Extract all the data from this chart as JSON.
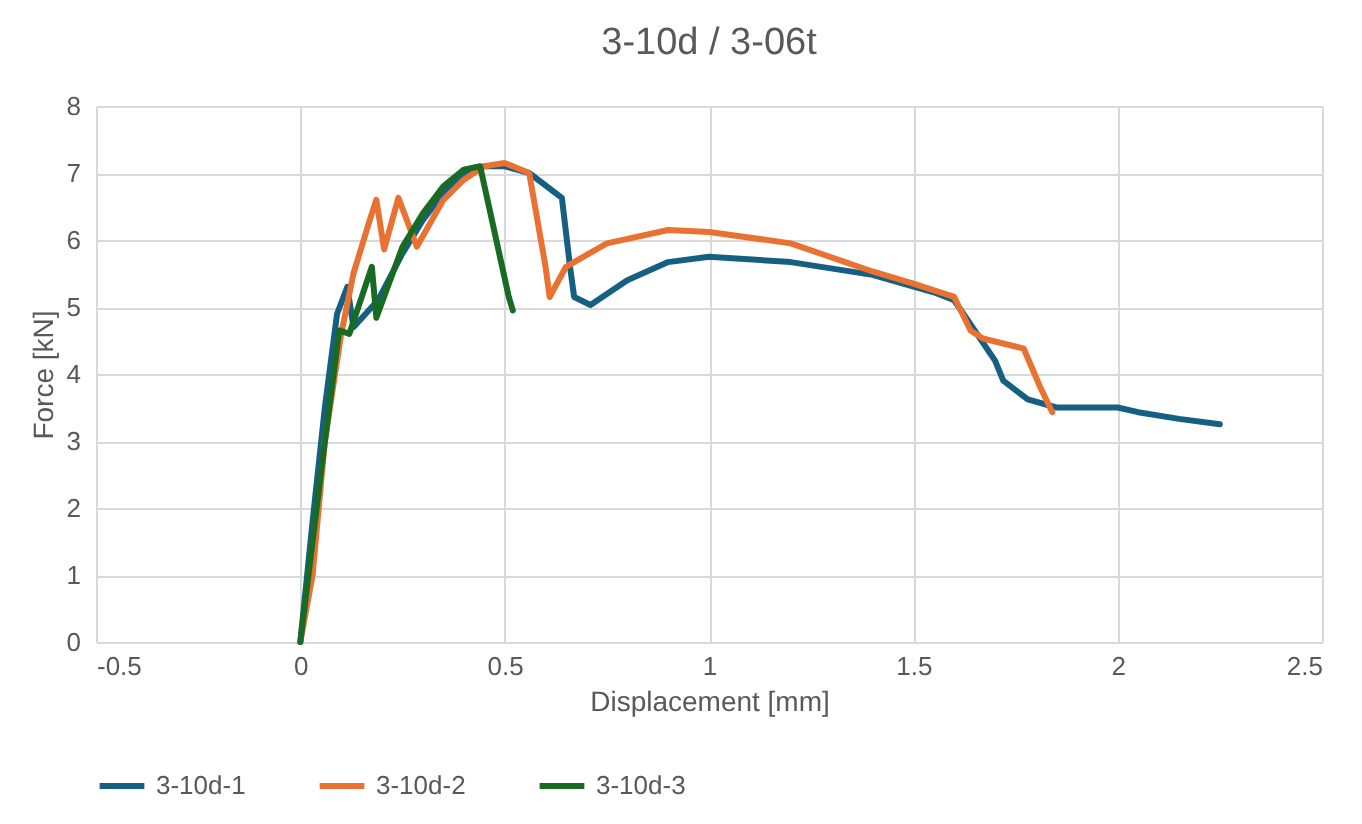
{
  "chart_data": {
    "type": "line",
    "title": "3-10d / 3-06t",
    "xlabel": "Displacement [mm]",
    "ylabel": "Force [kN]",
    "xlim": [
      -0.5,
      2.5
    ],
    "xticks": [
      -0.5,
      0,
      0.5,
      1,
      1.5,
      2,
      2.5
    ],
    "ylim": [
      0,
      8
    ],
    "yticks": [
      0,
      1,
      2,
      3,
      4,
      5,
      6,
      7,
      8
    ],
    "grid": true,
    "legend": "bottom",
    "line_style": "solid",
    "marker": "none",
    "series": [
      {
        "name": "3-10d-1",
        "color": "#156082",
        "x": [
          0,
          0.03,
          0.06,
          0.09,
          0.115,
          0.13,
          0.16,
          0.19,
          0.25,
          0.3,
          0.35,
          0.4,
          0.45,
          0.5,
          0.56,
          0.64,
          0.66,
          0.67,
          0.71,
          0.8,
          0.9,
          1.0,
          1.2,
          1.4,
          1.55,
          1.6,
          1.65,
          1.7,
          1.72,
          1.78,
          1.85,
          2.0,
          2.05,
          2.15,
          2.25
        ],
        "values": [
          0,
          1.8,
          3.5,
          4.9,
          5.3,
          4.7,
          4.9,
          5.1,
          5.8,
          6.3,
          6.7,
          7.0,
          7.1,
          7.1,
          7.0,
          6.63,
          5.6,
          5.15,
          5.03,
          5.4,
          5.67,
          5.75,
          5.67,
          5.48,
          5.22,
          5.1,
          4.65,
          4.2,
          3.9,
          3.62,
          3.5,
          3.5,
          3.43,
          3.33,
          3.25
        ]
      },
      {
        "name": "3-10d-2",
        "color": "#e97132",
        "x": [
          0,
          0.03,
          0.06,
          0.1,
          0.13,
          0.17,
          0.186,
          0.205,
          0.24,
          0.285,
          0.35,
          0.4,
          0.45,
          0.5,
          0.56,
          0.6,
          0.61,
          0.65,
          0.75,
          0.9,
          1.0,
          1.2,
          1.4,
          1.5,
          1.6,
          1.64,
          1.67,
          1.77,
          1.81,
          1.84
        ],
        "values": [
          0,
          1,
          3,
          4.6,
          5.5,
          6.3,
          6.6,
          5.86,
          6.63,
          5.9,
          6.6,
          6.9,
          7.1,
          7.15,
          7.0,
          5.6,
          5.15,
          5.6,
          5.95,
          6.15,
          6.12,
          5.95,
          5.53,
          5.35,
          5.15,
          4.65,
          4.53,
          4.38,
          3.81,
          3.43
        ]
      },
      {
        "name": "3-10d-3",
        "color": "#196b24",
        "x": [
          0,
          0.05,
          0.095,
          0.12,
          0.175,
          0.186,
          0.25,
          0.3,
          0.35,
          0.4,
          0.44,
          0.51,
          0.52
        ],
        "values": [
          0,
          2.5,
          4.65,
          4.6,
          5.6,
          4.84,
          5.9,
          6.4,
          6.8,
          7.05,
          7.1,
          5.15,
          4.95
        ]
      }
    ]
  }
}
